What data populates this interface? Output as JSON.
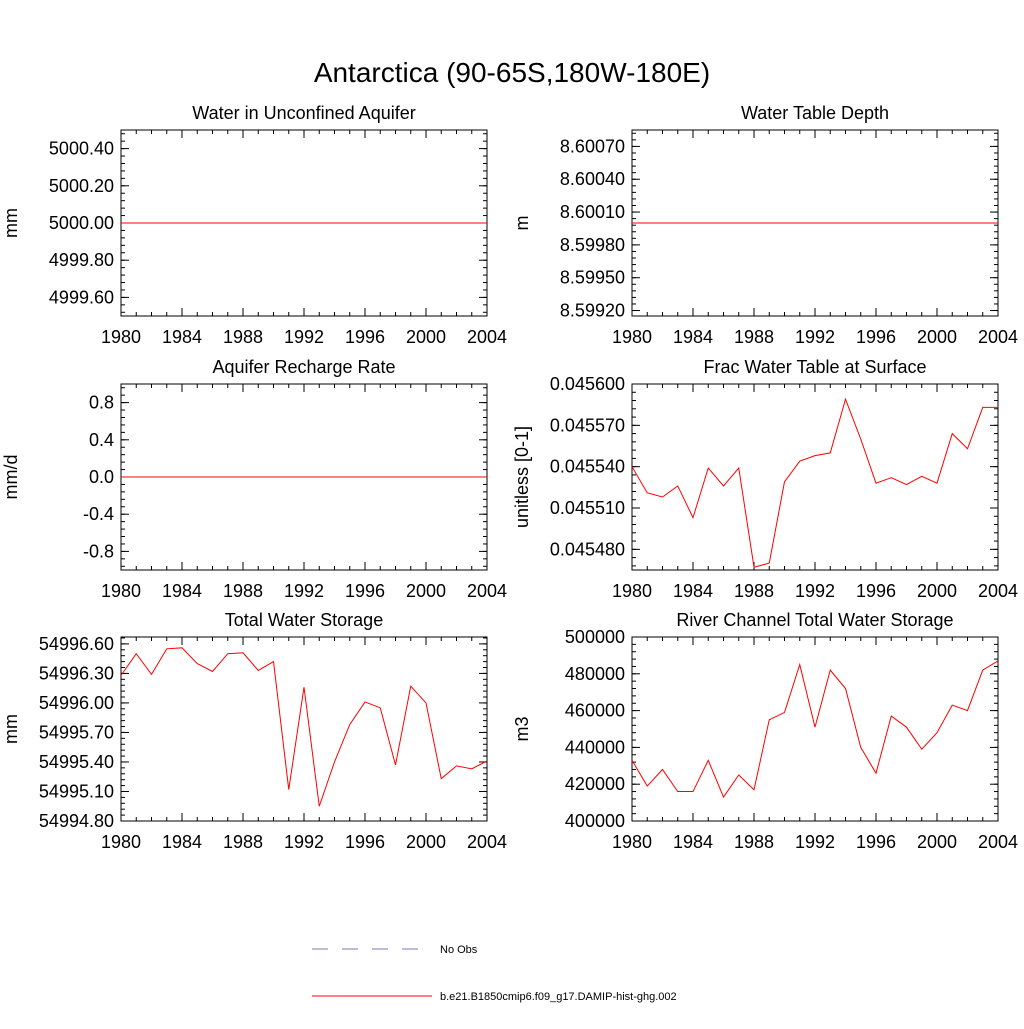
{
  "figure_title": "Antarctica (90-65S,180W-180E)",
  "legend": {
    "placement": "bottom-center",
    "entries": [
      {
        "label": "No Obs",
        "style": "dashed",
        "color": "#7a7ab8"
      },
      {
        "label": "b.e21.B1850cmip6.f09_g17.DAMIP-hist-ghg.002",
        "style": "solid",
        "color": "#ff0000"
      }
    ]
  },
  "chart_data": [
    {
      "type": "line",
      "title": "Water in Unconfined Aquifer",
      "ylabel": "mm",
      "xlim": [
        1980,
        2004
      ],
      "ylim": [
        4999.5,
        5000.5
      ],
      "x_ticks": [
        1980,
        1984,
        1988,
        1992,
        1996,
        2000,
        2004
      ],
      "x_tick_labels": [
        "1980",
        "1984",
        "1988",
        "1992",
        "1996",
        "2000",
        "2004"
      ],
      "y_ticks": [
        4999.6,
        4999.8,
        5000.0,
        5000.2,
        5000.4
      ],
      "y_tick_labels": [
        "4999.60",
        "4999.80",
        "5000.00",
        "5000.20",
        "5000.40"
      ],
      "y_minor_step": 0.04,
      "series": [
        {
          "color": "#ff0000",
          "x": [
            1980,
            2004
          ],
          "values": [
            5000.0,
            5000.0
          ]
        }
      ]
    },
    {
      "type": "line",
      "title": "Water Table Depth",
      "ylabel": "m",
      "xlim": [
        1980,
        2004
      ],
      "ylim": [
        8.59915,
        8.60085
      ],
      "x_ticks": [
        1980,
        1984,
        1988,
        1992,
        1996,
        2000,
        2004
      ],
      "x_tick_labels": [
        "1980",
        "1984",
        "1988",
        "1992",
        "1996",
        "2000",
        "2004"
      ],
      "y_ticks": [
        8.5992,
        8.5995,
        8.5998,
        8.6001,
        8.6004,
        8.6007
      ],
      "y_tick_labels": [
        "8.59920",
        "8.59950",
        "8.59980",
        "8.60010",
        "8.60040",
        "8.60070"
      ],
      "y_minor_step": 6e-05,
      "series": [
        {
          "color": "#ff0000",
          "x": [
            1980,
            2004
          ],
          "values": [
            8.6,
            8.6
          ]
        }
      ]
    },
    {
      "type": "line",
      "title": "Aquifer Recharge Rate",
      "ylabel": "mm/d",
      "xlim": [
        1980,
        2004
      ],
      "ylim": [
        -1.0,
        1.0
      ],
      "x_ticks": [
        1980,
        1984,
        1988,
        1992,
        1996,
        2000,
        2004
      ],
      "x_tick_labels": [
        "1980",
        "1984",
        "1988",
        "1992",
        "1996",
        "2000",
        "2004"
      ],
      "y_ticks": [
        -0.8,
        -0.4,
        0.0,
        0.4,
        0.8
      ],
      "y_tick_labels": [
        "-0.8",
        "-0.4",
        "0.0",
        "0.4",
        "0.8"
      ],
      "y_minor_step": 0.08,
      "series": [
        {
          "color": "#ff0000",
          "x": [
            1980,
            2004
          ],
          "values": [
            0.0,
            0.0
          ]
        }
      ]
    },
    {
      "type": "line",
      "title": "Frac Water Table at Surface",
      "ylabel": "unitless [0-1]",
      "xlim": [
        1980,
        2004
      ],
      "ylim": [
        0.045465,
        0.0456
      ],
      "x_ticks": [
        1980,
        1984,
        1988,
        1992,
        1996,
        2000,
        2004
      ],
      "x_tick_labels": [
        "1980",
        "1984",
        "1988",
        "1992",
        "1996",
        "2000",
        "2004"
      ],
      "y_ticks": [
        0.04548,
        0.04551,
        0.04554,
        0.04557,
        0.0456
      ],
      "y_tick_labels": [
        "0.045480",
        "0.045510",
        "0.045540",
        "0.045570",
        "0.045600"
      ],
      "y_minor_step": 6e-06,
      "series": [
        {
          "color": "#ff0000",
          "x": [
            1980,
            1981,
            1982,
            1983,
            1984,
            1985,
            1986,
            1987,
            1988,
            1989,
            1990,
            1991,
            1992,
            1993,
            1994,
            1995,
            1996,
            1997,
            1998,
            1999,
            2000,
            2001,
            2002,
            2003,
            2004
          ],
          "values": [
            0.04554,
            0.045521,
            0.045518,
            0.045526,
            0.045503,
            0.045539,
            0.045526,
            0.045539,
            0.045467,
            0.04547,
            0.045529,
            0.045544,
            0.045548,
            0.04555,
            0.045589,
            0.04556,
            0.045528,
            0.045532,
            0.045527,
            0.045533,
            0.045528,
            0.045564,
            0.045553,
            0.045583,
            0.045583
          ]
        }
      ]
    },
    {
      "type": "line",
      "title": "Total Water Storage",
      "ylabel": "mm",
      "xlim": [
        1980,
        2004
      ],
      "ylim": [
        54994.8,
        54996.67
      ],
      "x_ticks": [
        1980,
        1984,
        1988,
        1992,
        1996,
        2000,
        2004
      ],
      "x_tick_labels": [
        "1980",
        "1984",
        "1988",
        "1992",
        "1996",
        "2000",
        "2004"
      ],
      "y_ticks": [
        54994.8,
        54995.1,
        54995.4,
        54995.7,
        54996.0,
        54996.3,
        54996.6
      ],
      "y_tick_labels": [
        "54994.80",
        "54995.10",
        "54995.40",
        "54995.70",
        "54996.00",
        "54996.30",
        "54996.60"
      ],
      "y_minor_step": 0.06,
      "series": [
        {
          "color": "#ff0000",
          "x": [
            1980,
            1981,
            1982,
            1983,
            1984,
            1985,
            1986,
            1987,
            1988,
            1989,
            1990,
            1991,
            1992,
            1993,
            1994,
            1995,
            1996,
            1997,
            1998,
            1999,
            2000,
            2001,
            2002,
            2003,
            2004
          ],
          "values": [
            54996.28,
            54996.5,
            54996.29,
            54996.55,
            54996.56,
            54996.4,
            54996.32,
            54996.5,
            54996.51,
            54996.33,
            54996.42,
            54995.12,
            54996.16,
            54994.95,
            54995.4,
            54995.78,
            54996.01,
            54995.95,
            54995.37,
            54996.17,
            54996.0,
            54995.23,
            54995.36,
            54995.33,
            54995.41
          ]
        }
      ]
    },
    {
      "type": "line",
      "title": "River Channel Total Water Storage",
      "ylabel": "m3",
      "xlim": [
        1980,
        2004
      ],
      "ylim": [
        400000,
        500000
      ],
      "x_ticks": [
        1980,
        1984,
        1988,
        1992,
        1996,
        2000,
        2004
      ],
      "x_tick_labels": [
        "1980",
        "1984",
        "1988",
        "1992",
        "1996",
        "2000",
        "2004"
      ],
      "y_ticks": [
        400000,
        420000,
        440000,
        460000,
        480000,
        500000
      ],
      "y_tick_labels": [
        "400000",
        "420000",
        "440000",
        "460000",
        "480000",
        "500000"
      ],
      "y_minor_step": 4000,
      "series": [
        {
          "color": "#ff0000",
          "x": [
            1980,
            1981,
            1982,
            1983,
            1984,
            1985,
            1986,
            1987,
            1988,
            1989,
            1990,
            1991,
            1992,
            1993,
            1994,
            1995,
            1996,
            1997,
            1998,
            1999,
            2000,
            2001,
            2002,
            2003,
            2004
          ],
          "values": [
            433000,
            419000,
            428000,
            416000,
            416000,
            433000,
            413000,
            425000,
            417000,
            455000,
            459000,
            485000,
            451000,
            482000,
            472000,
            440000,
            426000,
            457000,
            451000,
            439000,
            448000,
            463000,
            460000,
            482000,
            487000
          ]
        }
      ]
    }
  ]
}
